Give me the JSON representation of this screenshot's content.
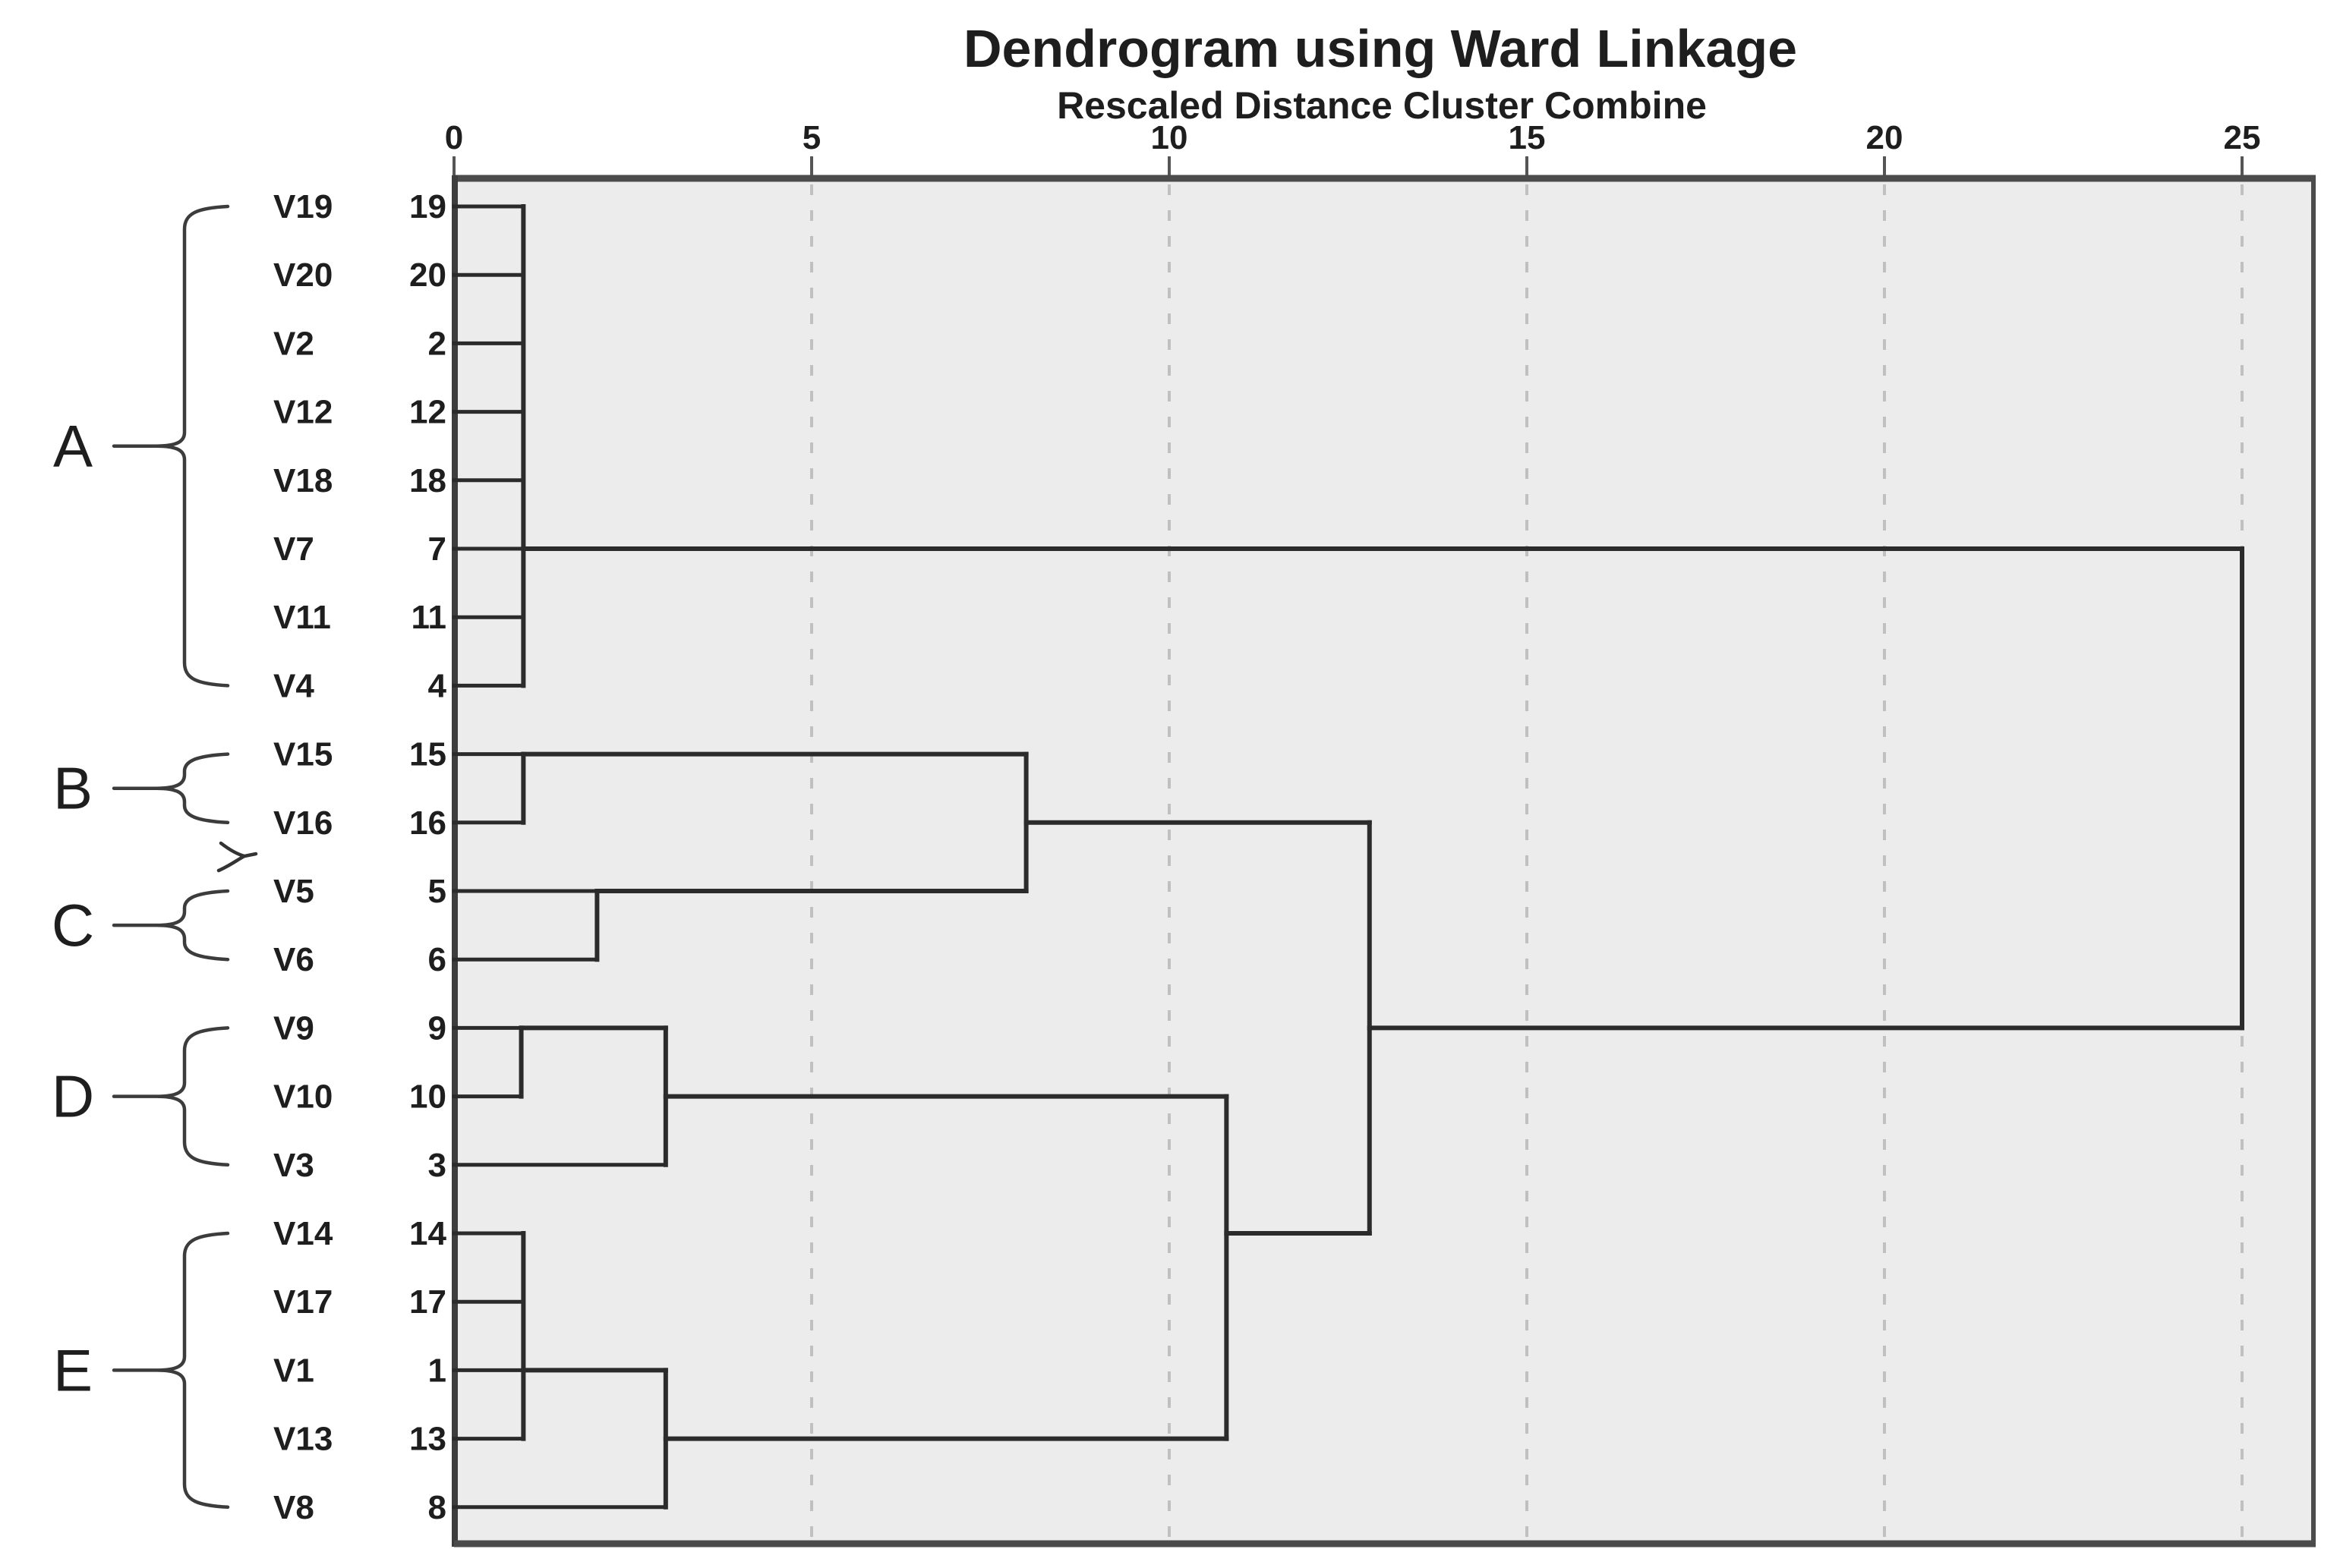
{
  "title": "Dendrogram using Ward Linkage",
  "subtitle": "Rescaled Distance Cluster Combine",
  "colors": {
    "line": "#2b2b2b",
    "grid": "#c0c0c0",
    "plot_bg": "#ececec",
    "border": "#4b4b4b",
    "brace": "#3c3c3c",
    "text": "#1e1e1e"
  },
  "chart_data": {
    "type": "dendrogram",
    "title": "Dendrogram using Ward Linkage",
    "xlabel": "Rescaled Distance Cluster Combine",
    "orientation": "horizontal",
    "xlim": [
      0,
      25
    ],
    "axis_ticks": [
      0,
      5,
      10,
      15,
      20,
      25
    ],
    "grid": "dashed-vertical",
    "leaves": [
      {
        "label": "V19",
        "case": 19,
        "group": "A"
      },
      {
        "label": "V20",
        "case": 20,
        "group": "A"
      },
      {
        "label": "V2",
        "case": 2,
        "group": "A"
      },
      {
        "label": "V12",
        "case": 12,
        "group": "A"
      },
      {
        "label": "V18",
        "case": 18,
        "group": "A"
      },
      {
        "label": "V7",
        "case": 7,
        "group": "A"
      },
      {
        "label": "V11",
        "case": 11,
        "group": "A"
      },
      {
        "label": "V4",
        "case": 4,
        "group": "A"
      },
      {
        "label": "V15",
        "case": 15,
        "group": "B"
      },
      {
        "label": "V16",
        "case": 16,
        "group": "B"
      },
      {
        "label": "V5",
        "case": 5,
        "group": "C"
      },
      {
        "label": "V6",
        "case": 6,
        "group": "C"
      },
      {
        "label": "V9",
        "case": 9,
        "group": "D"
      },
      {
        "label": "V10",
        "case": 10,
        "group": "D"
      },
      {
        "label": "V3",
        "case": 3,
        "group": "D"
      },
      {
        "label": "V14",
        "case": 14,
        "group": "E"
      },
      {
        "label": "V17",
        "case": 17,
        "group": "E"
      },
      {
        "label": "V1",
        "case": 1,
        "group": "E"
      },
      {
        "label": "V13",
        "case": 13,
        "group": "E"
      },
      {
        "label": "V8",
        "case": 8,
        "group": "E"
      }
    ],
    "clusters": [
      {
        "name": "A",
        "first": 0,
        "last": 7
      },
      {
        "name": "B",
        "first": 8,
        "last": 9
      },
      {
        "name": "C",
        "first": 10,
        "last": 11
      },
      {
        "name": "D",
        "first": 12,
        "last": 14
      },
      {
        "name": "E",
        "first": 15,
        "last": 19
      }
    ],
    "merges": [
      {
        "members": "V19,V20,V2,V12,V18,V7,V11,V4",
        "distance": 1
      },
      {
        "members": "V15+V16",
        "distance": 1
      },
      {
        "members": "V5+V6",
        "distance": 2
      },
      {
        "members": "V9+V10",
        "distance": 1
      },
      {
        "members": "(V9,V10)+V3",
        "distance": 3
      },
      {
        "members": "V14,V17,V1,V13",
        "distance": 1
      },
      {
        "members": "(V14,V17,V1,V13)+V8",
        "distance": 3
      },
      {
        "members": "(V15,V16)+(V5,V6)",
        "distance": 8
      },
      {
        "members": "(V9,V10,V3)+(V14,V17,V1,V13,V8)",
        "distance": 11
      },
      {
        "members": "(B,C)+(D,E)",
        "distance": 13
      },
      {
        "members": "A+(B,C,D,E)",
        "distance": 25
      }
    ],
    "links": {
      "horizontal": [
        {
          "row": 0,
          "d1": 0,
          "d2": 0.97,
          "kind": "leaf"
        },
        {
          "row": 1,
          "d1": 0,
          "d2": 0.97,
          "kind": "leaf"
        },
        {
          "row": 2,
          "d1": 0,
          "d2": 0.97,
          "kind": "leaf"
        },
        {
          "row": 3,
          "d1": 0,
          "d2": 0.97,
          "kind": "leaf"
        },
        {
          "row": 4,
          "d1": 0,
          "d2": 0.97,
          "kind": "leaf"
        },
        {
          "row": 5,
          "d1": 0,
          "d2": 0.97,
          "kind": "leaf"
        },
        {
          "row": 6,
          "d1": 0,
          "d2": 0.97,
          "kind": "leaf"
        },
        {
          "row": 7,
          "d1": 0,
          "d2": 0.97,
          "kind": "leaf"
        },
        {
          "row": 8,
          "d1": 0,
          "d2": 0.97,
          "kind": "leaf"
        },
        {
          "row": 9,
          "d1": 0,
          "d2": 0.97,
          "kind": "leaf"
        },
        {
          "row": 10,
          "d1": 0,
          "d2": 2.0,
          "kind": "leaf"
        },
        {
          "row": 11,
          "d1": 0,
          "d2": 2.0,
          "kind": "leaf"
        },
        {
          "row": 12,
          "d1": 0,
          "d2": 0.94,
          "kind": "leaf"
        },
        {
          "row": 13,
          "d1": 0,
          "d2": 0.94,
          "kind": "leaf"
        },
        {
          "row": 14,
          "d1": 0,
          "d2": 2.96,
          "kind": "leaf"
        },
        {
          "row": 15,
          "d1": 0,
          "d2": 0.97,
          "kind": "leaf"
        },
        {
          "row": 16,
          "d1": 0,
          "d2": 0.97,
          "kind": "leaf"
        },
        {
          "row": 17,
          "d1": 0,
          "d2": 0.97,
          "kind": "leaf"
        },
        {
          "row": 18,
          "d1": 0,
          "d2": 0.97,
          "kind": "leaf"
        },
        {
          "row": 19,
          "d1": 0,
          "d2": 2.96,
          "kind": "leaf"
        },
        {
          "row": 5,
          "d1": 0.97,
          "d2": 25,
          "kind": "link"
        },
        {
          "row": 8,
          "d1": 0.97,
          "d2": 8,
          "kind": "link"
        },
        {
          "row": 10,
          "d1": 2.0,
          "d2": 8,
          "kind": "link"
        },
        {
          "row": 9,
          "d1": 8,
          "d2": 12.8,
          "kind": "link"
        },
        {
          "row": 12,
          "d1": 0.94,
          "d2": 2.96,
          "kind": "link"
        },
        {
          "row": 13,
          "d1": 2.96,
          "d2": 10.8,
          "kind": "link"
        },
        {
          "row": 17,
          "d1": 0.97,
          "d2": 2.96,
          "kind": "link"
        },
        {
          "row": 18,
          "d1": 2.96,
          "d2": 10.8,
          "kind": "link"
        },
        {
          "row": 15,
          "d1": 10.8,
          "d2": 12.8,
          "kind": "link"
        },
        {
          "row": 12,
          "d1": 12.8,
          "d2": 25,
          "kind": "link"
        }
      ],
      "vertical": [
        {
          "d": 0.97,
          "r1": 0,
          "r2": 7
        },
        {
          "d": 0.97,
          "r1": 8,
          "r2": 9
        },
        {
          "d": 2.0,
          "r1": 10,
          "r2": 11
        },
        {
          "d": 8.0,
          "r1": 8,
          "r2": 10
        },
        {
          "d": 0.94,
          "r1": 12,
          "r2": 13
        },
        {
          "d": 2.96,
          "r1": 12,
          "r2": 14
        },
        {
          "d": 0.97,
          "r1": 15,
          "r2": 18
        },
        {
          "d": 2.96,
          "r1": 17,
          "r2": 19
        },
        {
          "d": 10.8,
          "r1": 13,
          "r2": 18
        },
        {
          "d": 12.8,
          "r1": 9,
          "r2": 15
        },
        {
          "d": 25.0,
          "r1": 5,
          "r2": 12
        }
      ]
    },
    "side_annotation": {
      "shape": "y",
      "near_rows": "V16/V5"
    }
  }
}
